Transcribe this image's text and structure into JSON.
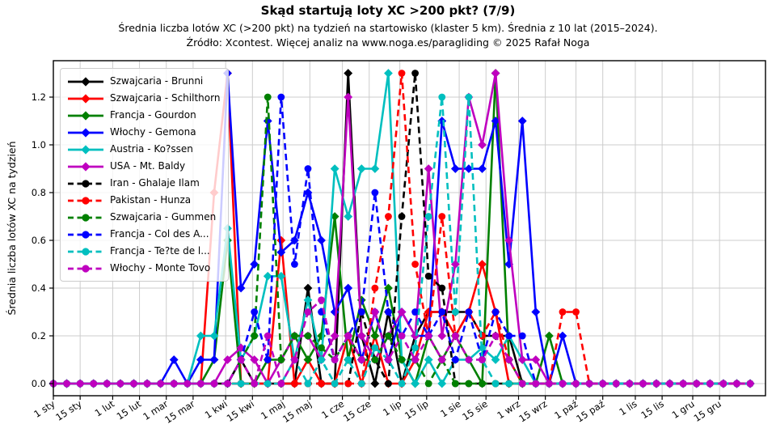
{
  "header": {
    "title": "Skąd startują loty XC >200 pkt? (7/9)",
    "subtitle": "Średnia liczba lotów XC (>200 pkt) na tydzień na startowisko (klaster 5 km). Średnia z 10 lat (2015–2024).",
    "source": "Źródło: Xcontest. Więcej analiz na www.noga.es/paragliding © 2025 Rafał Noga"
  },
  "chart_data": {
    "type": "line",
    "title": "Skąd startują loty XC >200 pkt? (7/9)",
    "ylabel": "Średnia liczba lotów XC na tydzień",
    "x_description": "tydzień roku (punkty co 7 dni, day-of-year = index*7)",
    "ylim": [
      -0.05,
      1.35
    ],
    "xlim_days": [
      0,
      372
    ],
    "grid": true,
    "legend_position": "upper left",
    "yticks": [
      "0.0",
      "0.2",
      "0.4",
      "0.6",
      "0.8",
      "1.0",
      "1.2"
    ],
    "ytick_values": [
      0,
      0.2,
      0.4,
      0.6,
      0.8,
      1.0,
      1.2
    ],
    "xticks": [
      {
        "label": "1 sty",
        "day": 0
      },
      {
        "label": "15 sty",
        "day": 14
      },
      {
        "label": "1 lut",
        "day": 31
      },
      {
        "label": "15 lut",
        "day": 45
      },
      {
        "label": "1 mar",
        "day": 59
      },
      {
        "label": "15 mar",
        "day": 73
      },
      {
        "label": "1 kwi",
        "day": 90
      },
      {
        "label": "15 kwi",
        "day": 104
      },
      {
        "label": "1 maj",
        "day": 120
      },
      {
        "label": "15 maj",
        "day": 134
      },
      {
        "label": "1 cze",
        "day": 151
      },
      {
        "label": "15 cze",
        "day": 165
      },
      {
        "label": "1 lip",
        "day": 181
      },
      {
        "label": "15 lip",
        "day": 195
      },
      {
        "label": "1 sie",
        "day": 212
      },
      {
        "label": "15 sie",
        "day": 226
      },
      {
        "label": "1 wrz",
        "day": 243
      },
      {
        "label": "15 wrz",
        "day": 257
      },
      {
        "label": "1 paź",
        "day": 273
      },
      {
        "label": "15 paź",
        "day": 287
      },
      {
        "label": "1 lis",
        "day": 304
      },
      {
        "label": "15 lis",
        "day": 318
      },
      {
        "label": "1 gru",
        "day": 334
      },
      {
        "label": "15 gru",
        "day": 348
      }
    ],
    "series": [
      {
        "name": "Szwajcaria - Brunni",
        "color": "#000000",
        "linestyle": "solid",
        "marker": "diamond",
        "values": [
          0,
          0,
          0,
          0,
          0,
          0,
          0,
          0,
          0,
          0,
          0,
          0,
          0,
          0,
          0.1,
          0,
          0,
          0,
          0,
          0.4,
          0,
          0,
          1.3,
          0.2,
          0,
          0.3,
          0,
          0.2,
          0.3,
          0.3,
          0.3,
          0.3,
          0.2,
          0.2,
          0.2,
          0,
          0,
          0,
          0,
          0,
          0,
          0,
          0,
          0,
          0,
          0,
          0,
          0,
          0,
          0,
          0,
          0,
          0
        ]
      },
      {
        "name": "Szwajcaria - Schilthorn",
        "color": "#ff0000",
        "linestyle": "solid",
        "marker": "diamond",
        "values": [
          0,
          0,
          0,
          0,
          0,
          0,
          0,
          0,
          0,
          0,
          0,
          0,
          0.8,
          1.3,
          0,
          0,
          0,
          0.6,
          0,
          0.1,
          0,
          0,
          0.2,
          0,
          0.2,
          0,
          0,
          0.1,
          0.3,
          0.3,
          0.2,
          0.3,
          0.5,
          0.3,
          0,
          0,
          0,
          0,
          0,
          0,
          0,
          0,
          0,
          0,
          0,
          0,
          0,
          0,
          0,
          0,
          0,
          0,
          0
        ]
      },
      {
        "name": "Francja - Gourdon",
        "color": "#008000",
        "linestyle": "solid",
        "marker": "diamond",
        "values": [
          0,
          0,
          0,
          0,
          0,
          0,
          0,
          0,
          0,
          0,
          0,
          0,
          0.1,
          0.6,
          0,
          0,
          0.1,
          0.1,
          0.2,
          0.1,
          0.2,
          0.7,
          0.1,
          0.35,
          0.2,
          0.4,
          0.1,
          0,
          0.2,
          0.1,
          0.2,
          0.1,
          0,
          1.3,
          0.1,
          0,
          0,
          0.2,
          0,
          0,
          0,
          0,
          0,
          0,
          0,
          0,
          0,
          0,
          0,
          0,
          0,
          0,
          0
        ]
      },
      {
        "name": "Włochy - Gemona",
        "color": "#0000ff",
        "linestyle": "solid",
        "marker": "diamond",
        "values": [
          0,
          0,
          0,
          0,
          0,
          0,
          0,
          0,
          0,
          0.1,
          0,
          0.1,
          0.1,
          1.3,
          0.4,
          0.5,
          1.1,
          0.55,
          0.6,
          0.8,
          0.6,
          0.3,
          0.4,
          0.1,
          0.3,
          0.1,
          0.3,
          0.2,
          0.2,
          1.1,
          0.9,
          0.9,
          0.9,
          1.1,
          0.5,
          1.1,
          0.3,
          0,
          0.2,
          0,
          0,
          0,
          0,
          0,
          0,
          0,
          0,
          0,
          0,
          0,
          0,
          0,
          0
        ]
      },
      {
        "name": "Austria - Ko?ssen",
        "color": "#00bfbf",
        "linestyle": "solid",
        "marker": "diamond",
        "values": [
          0,
          0,
          0,
          0,
          0,
          0,
          0,
          0,
          0,
          0,
          0,
          0.2,
          0.2,
          0.65,
          0.1,
          0.2,
          0.45,
          0.45,
          0.1,
          0.35,
          0.1,
          0.9,
          0.7,
          0.9,
          0.9,
          1.3,
          0.1,
          0,
          0.1,
          0,
          0.1,
          0.1,
          0.15,
          0.1,
          0.2,
          0.1,
          0,
          0,
          0,
          0,
          0,
          0,
          0,
          0,
          0,
          0,
          0,
          0,
          0,
          0,
          0,
          0,
          0
        ]
      },
      {
        "name": "USA - Mt. Baldy",
        "color": "#bf00bf",
        "linestyle": "solid",
        "marker": "diamond",
        "values": [
          0,
          0,
          0,
          0,
          0,
          0,
          0,
          0,
          0,
          0,
          0,
          0,
          0,
          0.1,
          0.15,
          0.1,
          0,
          0.1,
          0.2,
          0.2,
          0.1,
          0.2,
          1.2,
          0.2,
          0.1,
          0.2,
          0.3,
          0.2,
          0.9,
          0.2,
          0.5,
          1.2,
          1.0,
          1.3,
          0.6,
          0.1,
          0.1,
          0,
          0,
          0,
          0,
          0,
          0,
          0,
          0,
          0,
          0,
          0,
          0,
          0,
          0,
          0,
          0
        ]
      },
      {
        "name": "Iran - Ghalaje Ilam",
        "color": "#000000",
        "linestyle": "dashed",
        "marker": "circle",
        "values": [
          0,
          0,
          0,
          0,
          0,
          0,
          0,
          0,
          0,
          0,
          0,
          0,
          0,
          0,
          0,
          0,
          0,
          0,
          0,
          0,
          0,
          0,
          0,
          0.3,
          0.1,
          0,
          0.7,
          1.3,
          0.45,
          0.4,
          0,
          0,
          0,
          0,
          0,
          0,
          0,
          0,
          0,
          0,
          0,
          0,
          0,
          0,
          0,
          0,
          0,
          0,
          0,
          0,
          0,
          0,
          0
        ]
      },
      {
        "name": "Pakistan - Hunza",
        "color": "#ff0000",
        "linestyle": "dashed",
        "marker": "circle",
        "values": [
          0,
          0,
          0,
          0,
          0,
          0,
          0,
          0,
          0,
          0,
          0,
          0,
          0,
          0,
          0,
          0,
          0,
          0,
          0,
          0,
          0,
          0,
          0,
          0,
          0.4,
          0.7,
          1.3,
          0.5,
          0.2,
          0.7,
          0.2,
          0.3,
          0.2,
          0.3,
          0.1,
          0,
          0,
          0,
          0.3,
          0.3,
          0,
          0,
          0,
          0,
          0,
          0,
          0,
          0,
          0,
          0,
          0,
          0,
          0
        ]
      },
      {
        "name": "Szwajcaria - Gummen",
        "color": "#008000",
        "linestyle": "dashed",
        "marker": "circle",
        "values": [
          0,
          0,
          0,
          0,
          0,
          0,
          0,
          0,
          0,
          0,
          0,
          0,
          0,
          0,
          0.1,
          0.2,
          1.2,
          0.1,
          0.2,
          0.2,
          0.15,
          0.1,
          0.2,
          0.1,
          0.1,
          0.2,
          0.1,
          0.1,
          0,
          0.1,
          0,
          0,
          0,
          0,
          0,
          0,
          0,
          0,
          0,
          0,
          0,
          0,
          0,
          0,
          0,
          0,
          0,
          0,
          0,
          0,
          0,
          0,
          0
        ]
      },
      {
        "name": "Francja - Col des A...",
        "color": "#0000ff",
        "linestyle": "dashed",
        "marker": "circle",
        "values": [
          0,
          0,
          0,
          0,
          0,
          0,
          0,
          0,
          0,
          0,
          0,
          0,
          0,
          0,
          0.1,
          0.3,
          0.1,
          1.2,
          0.5,
          0.9,
          0.3,
          0.1,
          0.2,
          0.3,
          0.8,
          0.3,
          0.2,
          0.3,
          0.2,
          0.3,
          0.1,
          0.3,
          0.1,
          0.3,
          0.2,
          0.2,
          0,
          0,
          0,
          0,
          0,
          0,
          0,
          0,
          0,
          0,
          0,
          0,
          0,
          0,
          0,
          0,
          0
        ]
      },
      {
        "name": "Francja - Te?te de l...",
        "color": "#00bfbf",
        "linestyle": "dashed",
        "marker": "circle",
        "values": [
          0,
          0,
          0,
          0,
          0,
          0,
          0,
          0,
          0,
          0,
          0,
          0,
          0,
          0,
          0,
          0,
          0,
          0,
          0.1,
          0,
          0.1,
          0,
          0.1,
          0,
          0.15,
          0.1,
          0,
          0.15,
          0.7,
          1.2,
          0.3,
          1.2,
          0.1,
          0,
          0,
          0,
          0,
          0,
          0,
          0,
          0,
          0,
          0,
          0,
          0,
          0,
          0,
          0,
          0,
          0,
          0,
          0,
          0
        ]
      },
      {
        "name": "Włochy - Monte Tovo",
        "color": "#bf00bf",
        "linestyle": "dashed",
        "marker": "circle",
        "values": [
          0,
          0,
          0,
          0,
          0,
          0,
          0,
          0,
          0,
          0,
          0,
          0,
          0,
          0,
          0.1,
          0,
          0.2,
          0,
          0.1,
          0.3,
          0.35,
          0.1,
          0.2,
          0.1,
          0.3,
          0.1,
          0.2,
          0.1,
          0.2,
          0.1,
          0.2,
          0.1,
          0.1,
          0.2,
          0.1,
          0,
          0,
          0,
          0,
          0,
          0,
          0,
          0,
          0,
          0,
          0,
          0,
          0,
          0,
          0,
          0,
          0,
          0
        ]
      }
    ]
  }
}
